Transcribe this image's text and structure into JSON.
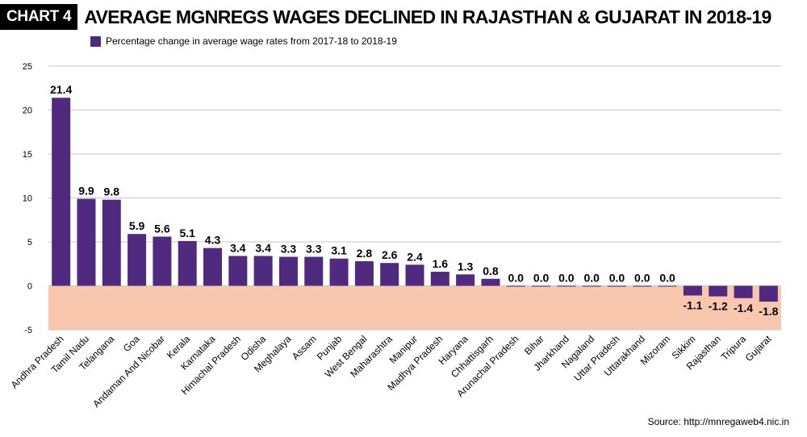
{
  "header": {
    "badge": "CHART 4",
    "title": "AVERAGE MGNREGS WAGES DECLINED IN RAJASTHAN & GUJARAT IN 2018-19"
  },
  "source": "Source: http://mnregaweb4.nic.in",
  "colors": {
    "bar": "#4f2a7e",
    "negative_band": "#f9c6ae",
    "grid": "#c8c8c8"
  },
  "chart_data": {
    "type": "bar",
    "title": "AVERAGE MGNREGS WAGES DECLINED IN RAJASTHAN & GUJARAT IN 2018-19",
    "categories": [
      "Andhra Pradesh",
      "Tamil Nadu",
      "Telangana",
      "Goa",
      "Andaman And Nicobar",
      "Kerala",
      "Karnataka",
      "Himachal Pradesh",
      "Odisha",
      "Meghalaya",
      "Assam",
      "Punjab",
      "West Bengal",
      "Maharashtra",
      "Manipur",
      "Madhya Pradesh",
      "Haryana",
      "Chhattisgarh",
      "Arunachal Pradesh",
      "Bihar",
      "Jharkhand",
      "Nagaland",
      "Uttar Pradesh",
      "Uttarakhand",
      "Mizoram",
      "Sikkim",
      "Rajasthan",
      "Tripura",
      "Gujarat"
    ],
    "series": [
      {
        "name": "Percentage change in average wage rates from 2017-18 to 2018-19",
        "values": [
          21.4,
          9.9,
          9.8,
          5.9,
          5.6,
          5.1,
          4.3,
          3.4,
          3.4,
          3.3,
          3.3,
          3.1,
          2.8,
          2.6,
          2.4,
          1.6,
          1.3,
          0.8,
          0.0,
          0.0,
          0.0,
          0.0,
          0.0,
          0.0,
          0.0,
          -1.1,
          -1.2,
          -1.4,
          -1.8
        ]
      }
    ],
    "value_labels": [
      "21.4",
      "9.9",
      "9.8",
      "5.9",
      "5.6",
      "5.1",
      "4.3",
      "3.4",
      "3.4",
      "3.3",
      "3.3",
      "3.1",
      "2.8",
      "2.6",
      "2.4",
      "1.6",
      "1.3",
      "0.8",
      "0.0",
      "0.0",
      "0.0",
      "0.0",
      "0.0",
      "0.0",
      "0.0",
      "-1.1",
      "-1.2",
      "-1.4",
      "-1.8"
    ],
    "y_ticks": [
      25,
      20,
      15,
      10,
      5,
      0,
      -5
    ],
    "y_tick_labels": [
      "25",
      "20",
      "15",
      "10",
      "5",
      "0",
      "-5"
    ],
    "ylim": [
      -5,
      25
    ],
    "grid": true,
    "legend_position": "top-left"
  }
}
